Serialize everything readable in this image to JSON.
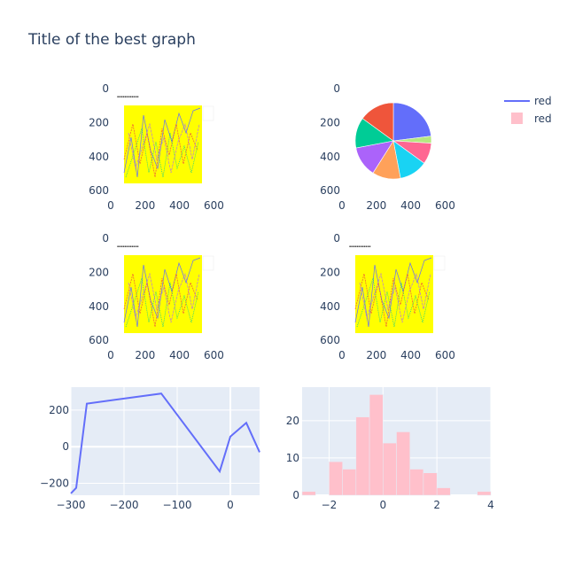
{
  "title": "Title of the best graph",
  "legend": [
    {
      "name": "red",
      "kind": "line",
      "color": "#636efa"
    },
    {
      "name": "red",
      "kind": "bar",
      "color": "#ffc0cb"
    }
  ],
  "images": {
    "xticks": [
      0,
      200,
      400,
      600
    ],
    "yticks": [
      0,
      200,
      400,
      600
    ],
    "xlim": [
      0,
      640
    ],
    "ylim": [
      0,
      600
    ],
    "panels": [
      {
        "id": "image-panel-1",
        "content": "embedded-line-chart-screenshot"
      },
      {
        "id": "image-panel-2",
        "content": "embedded-pie-chart-screenshot"
      },
      {
        "id": "image-panel-3",
        "content": "embedded-line-chart-screenshot"
      },
      {
        "id": "image-panel-4",
        "content": "embedded-line-chart-screenshot"
      }
    ],
    "embedded_colors": {
      "plot_background": "#ffff00",
      "pie_slices": [
        "#636efa",
        "#b6e880",
        "#ff6692",
        "#19d3f3",
        "#ffa15a",
        "#ab63fa",
        "#00cc96",
        "#ef553b"
      ]
    }
  },
  "chart_data": [
    {
      "type": "line",
      "series": [
        {
          "name": "red",
          "color": "#636efa",
          "x": [
            -300,
            -290,
            -270,
            -130,
            -20,
            0,
            30,
            55
          ],
          "y": [
            -255,
            -225,
            235,
            290,
            -135,
            55,
            130,
            -30
          ]
        }
      ],
      "xlim": [
        -300,
        55
      ],
      "ylim": [
        -265,
        325
      ],
      "xticks": [
        -300,
        -200,
        -100,
        0
      ],
      "yticks": [
        -200,
        0,
        200
      ],
      "grid": true
    },
    {
      "type": "bar",
      "series": [
        {
          "name": "red",
          "color": "#ffc0cb",
          "bin_start": -3,
          "bin_width": 0.5,
          "counts": [
            1,
            0,
            9,
            7,
            21,
            27,
            14,
            17,
            7,
            6,
            2,
            0,
            0,
            1
          ]
        }
      ],
      "xlim": [
        -3,
        4
      ],
      "ylim": [
        0,
        29
      ],
      "xticks": [
        -2,
        0,
        2,
        4
      ],
      "yticks": [
        0,
        10,
        20
      ],
      "grid": true
    }
  ]
}
